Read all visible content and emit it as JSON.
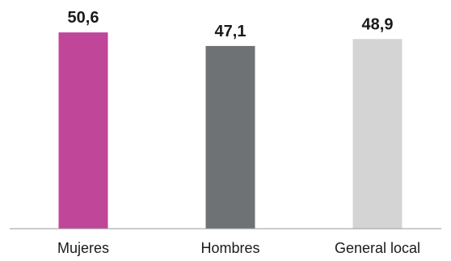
{
  "chart_data": {
    "type": "bar",
    "categories": [
      "Mujeres",
      "Hombres",
      "General local"
    ],
    "values": [
      50.6,
      47.1,
      48.9
    ],
    "value_labels": [
      "50,6",
      "47,1",
      "48,9"
    ],
    "colors": [
      "#c0469a",
      "#6f7275",
      "#d4d4d4"
    ],
    "title": "",
    "xlabel": "",
    "ylabel": "",
    "grid": false,
    "legend": "none"
  }
}
